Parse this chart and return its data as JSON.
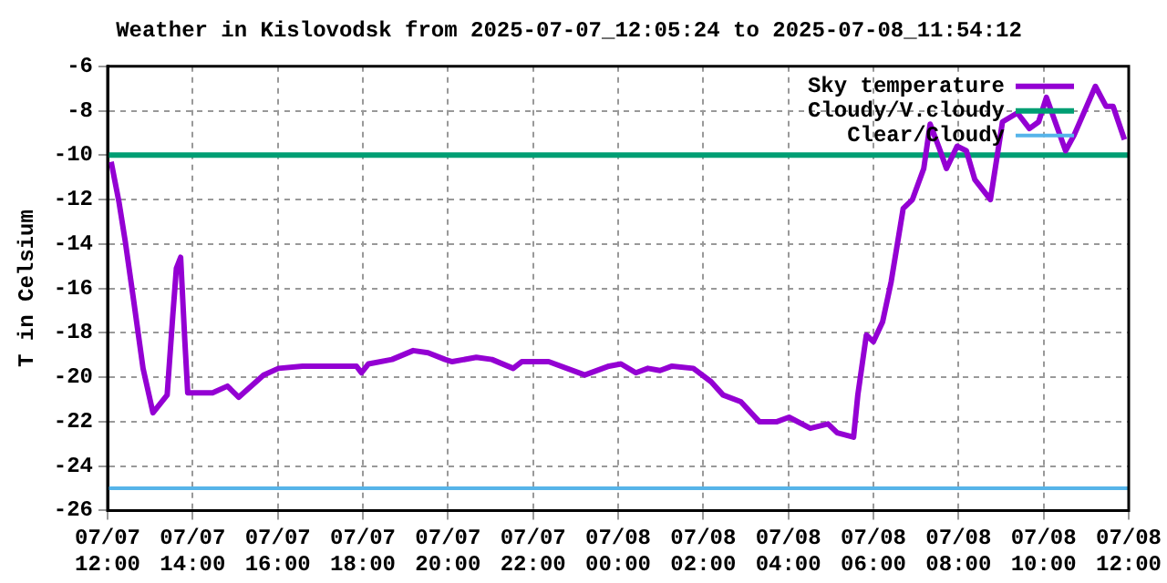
{
  "chart_data": {
    "type": "line",
    "title": "Weather in Kislovodsk from 2025-07-07_12:05:24 to 2025-07-08_11:54:12",
    "ylabel": "T in Celsium",
    "xlim": [
      "2025-07-07T12:00",
      "2025-07-08T12:00"
    ],
    "xticks": [
      {
        "value": "2025-07-07T12:00",
        "label": "07/07\n12:00"
      },
      {
        "value": "2025-07-07T14:00",
        "label": "07/07\n14:00"
      },
      {
        "value": "2025-07-07T16:00",
        "label": "07/07\n16:00"
      },
      {
        "value": "2025-07-07T18:00",
        "label": "07/07\n18:00"
      },
      {
        "value": "2025-07-07T20:00",
        "label": "07/07\n20:00"
      },
      {
        "value": "2025-07-07T22:00",
        "label": "07/07\n22:00"
      },
      {
        "value": "2025-07-08T00:00",
        "label": "07/08\n00:00"
      },
      {
        "value": "2025-07-08T02:00",
        "label": "07/08\n02:00"
      },
      {
        "value": "2025-07-08T04:00",
        "label": "07/08\n04:00"
      },
      {
        "value": "2025-07-08T06:00",
        "label": "07/08\n06:00"
      },
      {
        "value": "2025-07-08T08:00",
        "label": "07/08\n08:00"
      },
      {
        "value": "2025-07-08T10:00",
        "label": "07/08\n10:00"
      },
      {
        "value": "2025-07-08T12:00",
        "label": "07/08\n12:00"
      }
    ],
    "ylim": [
      -26,
      -6
    ],
    "yticks": [
      -26,
      -24,
      -22,
      -20,
      -18,
      -16,
      -14,
      -12,
      -10,
      -8,
      -6
    ],
    "grid": true,
    "legend": "top right",
    "marker": "none",
    "line_style": "solid",
    "series": [
      {
        "name": "Sky temperature",
        "color": "#9400d3",
        "x": [
          "2025-07-07T12:05",
          "2025-07-07T12:16",
          "2025-07-07T12:25",
          "2025-07-07T12:37",
          "2025-07-07T12:50",
          "2025-07-07T13:04",
          "2025-07-07T13:24",
          "2025-07-07T13:32",
          "2025-07-07T13:37",
          "2025-07-07T13:43",
          "2025-07-07T13:49",
          "2025-07-07T13:53",
          "2025-07-07T14:28",
          "2025-07-07T14:49",
          "2025-07-07T15:05",
          "2025-07-07T15:40",
          "2025-07-07T16:01",
          "2025-07-07T16:35",
          "2025-07-07T17:51",
          "2025-07-07T17:58",
          "2025-07-07T18:08",
          "2025-07-07T18:41",
          "2025-07-07T19:11",
          "2025-07-07T19:32",
          "2025-07-07T19:56",
          "2025-07-07T20:06",
          "2025-07-07T20:40",
          "2025-07-07T21:02",
          "2025-07-07T21:32",
          "2025-07-07T21:44",
          "2025-07-07T22:22",
          "2025-07-07T23:13",
          "2025-07-07T23:47",
          "2025-07-08T00:04",
          "2025-07-08T00:25",
          "2025-07-08T00:42",
          "2025-07-08T00:59",
          "2025-07-08T01:16",
          "2025-07-08T01:46",
          "2025-07-08T02:11",
          "2025-07-08T02:28",
          "2025-07-08T02:53",
          "2025-07-08T03:19",
          "2025-07-08T03:44",
          "2025-07-08T04:01",
          "2025-07-08T04:31",
          "2025-07-08T04:56",
          "2025-07-08T05:09",
          "2025-07-08T05:32",
          "2025-07-08T05:38",
          "2025-07-08T05:50",
          "2025-07-08T06:00",
          "2025-07-08T06:13",
          "2025-07-08T06:25",
          "2025-07-08T06:42",
          "2025-07-08T06:55",
          "2025-07-08T07:11",
          "2025-07-08T07:20",
          "2025-07-08T07:33",
          "2025-07-08T07:43",
          "2025-07-08T07:58",
          "2025-07-08T08:11",
          "2025-07-08T08:23",
          "2025-07-08T08:45",
          "2025-07-08T09:02",
          "2025-07-08T09:23",
          "2025-07-08T09:40",
          "2025-07-08T09:53",
          "2025-07-08T10:04",
          "2025-07-08T10:31",
          "2025-07-08T10:43",
          "2025-07-08T11:13",
          "2025-07-08T11:28",
          "2025-07-08T11:38",
          "2025-07-08T11:54"
        ],
        "values": [
          -10.3,
          -12.1,
          -13.9,
          -16.6,
          -19.6,
          -21.6,
          -20.8,
          -17.2,
          -15.1,
          -14.6,
          -18.4,
          -20.7,
          -20.7,
          -20.4,
          -20.9,
          -19.9,
          -19.6,
          -19.5,
          -19.5,
          -19.8,
          -19.4,
          -19.2,
          -18.8,
          -18.9,
          -19.2,
          -19.3,
          -19.1,
          -19.2,
          -19.6,
          -19.3,
          -19.3,
          -19.9,
          -19.5,
          -19.4,
          -19.8,
          -19.6,
          -19.7,
          -19.5,
          -19.6,
          -20.2,
          -20.8,
          -21.1,
          -22.0,
          -22.0,
          -21.8,
          -22.3,
          -22.1,
          -22.5,
          -22.7,
          -20.8,
          -18.1,
          -18.4,
          -17.5,
          -15.7,
          -12.4,
          -12.0,
          -10.6,
          -8.6,
          -9.7,
          -10.6,
          -9.6,
          -9.8,
          -11.1,
          -12.0,
          -8.5,
          -8.1,
          -8.8,
          -8.5,
          -7.4,
          -9.8,
          -9.1,
          -6.9,
          -7.8,
          -7.8,
          -9.3
        ]
      }
    ],
    "ref_lines": [
      {
        "axis": "y",
        "value": -10,
        "label": "Cloudy/V.cloudy",
        "color": "#009e73"
      },
      {
        "axis": "y",
        "value": -25,
        "label": "Clear/Cloudy",
        "color": "#56b4e9"
      }
    ]
  }
}
